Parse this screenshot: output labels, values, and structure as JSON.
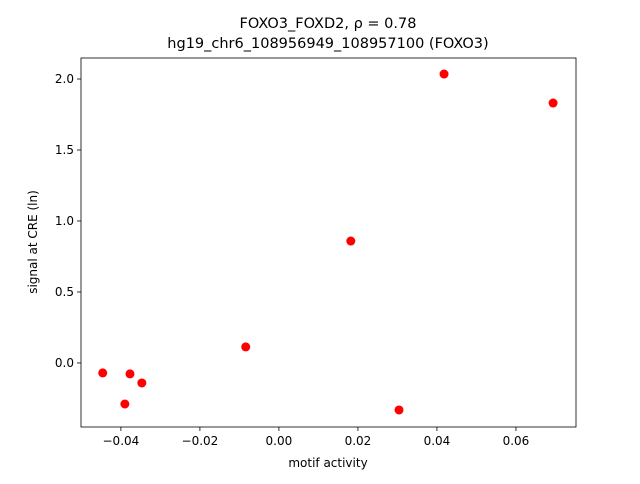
{
  "chart_data": {
    "type": "scatter",
    "title": [
      "FOXO3_FOXD2, ρ = 0.78",
      "hg19_chr6_108956949_108957100 (FOXO3)"
    ],
    "x_label": "motif activity",
    "y_label": "signal at CRE (ln)",
    "series": [
      {
        "color": "#ff0000",
        "x": [
          -0.0446,
          -0.0377,
          -0.0347,
          -0.039,
          -0.0084,
          0.0182,
          0.0304,
          0.0418,
          0.0694
        ],
        "values": [
          -0.07,
          -0.077,
          -0.141,
          -0.289,
          0.113,
          0.859,
          -0.331,
          2.035,
          1.831
        ]
      }
    ],
    "xlim": [
      -0.0501,
      0.0752
    ],
    "ylim": [
      -0.451,
      2.148
    ],
    "xticks": [
      {
        "value": -0.04,
        "label": "−0.04"
      },
      {
        "value": -0.02,
        "label": "−0.02"
      },
      {
        "value": 0,
        "label": "0.00"
      },
      0.02,
      0.04,
      0.06
    ],
    "yticks": [
      {
        "value": 0,
        "label": "0.0"
      },
      0.5,
      {
        "value": 1,
        "label": "1.0"
      },
      1.5,
      {
        "value": 2,
        "label": "2.0"
      }
    ]
  }
}
